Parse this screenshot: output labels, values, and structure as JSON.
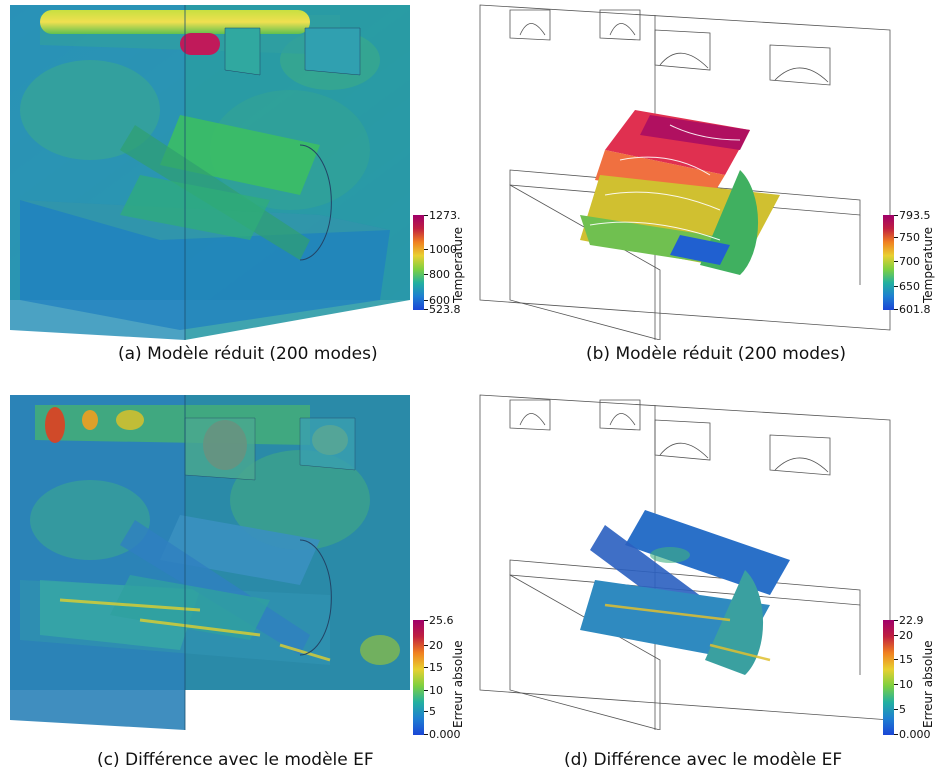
{
  "colors": {
    "scale": [
      "#1b46d6",
      "#1f7fd1",
      "#23b0a0",
      "#7fd040",
      "#e8d030",
      "#f08020",
      "#c02040",
      "#a0006a"
    ],
    "domain_fill": "#1f8a9a",
    "wire": "#555555"
  },
  "panels": [
    {
      "caption": "(a) Modèle réduit (200 modes)",
      "legend": {
        "title": "Temperature",
        "ticks": [
          "1273.",
          "1000",
          "800",
          "600",
          "523.8"
        ],
        "levels": [
          1,
          0.64,
          0.37,
          0.1,
          0
        ]
      }
    },
    {
      "caption": "(b) Modèle réduit (200 modes)",
      "legend": {
        "title": "Temperature",
        "ticks": [
          "793.5",
          "750",
          "700",
          "650",
          "601.8"
        ],
        "levels": [
          1,
          0.77,
          0.51,
          0.25,
          0
        ]
      }
    },
    {
      "caption": "(c) Différence avec le modèle EF",
      "legend": {
        "title": "Erreur absolue",
        "ticks": [
          "25.6",
          "20",
          "15",
          "10",
          "5",
          "0.000"
        ],
        "levels": [
          1,
          0.78,
          0.59,
          0.39,
          0.2,
          0
        ]
      }
    },
    {
      "caption": "(d) Différence avec le modèle EF",
      "legend": {
        "title": "Erreur absolue",
        "ticks": [
          "22.9",
          "20",
          "15",
          "10",
          "5",
          "0.000"
        ],
        "levels": [
          1,
          0.87,
          0.66,
          0.44,
          0.22,
          0
        ]
      }
    }
  ]
}
